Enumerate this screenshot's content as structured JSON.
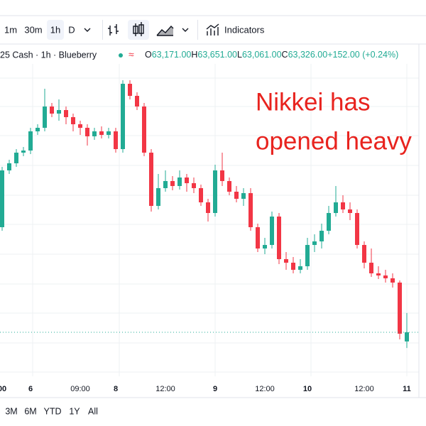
{
  "toolbar": {
    "intervals": [
      "1m",
      "30m",
      "1h",
      "D"
    ],
    "selected_index": 2,
    "indicators": "Indicators"
  },
  "legend": {
    "symbol": "25 Cash · 1h · Blueberry",
    "ohlc": [
      {
        "key": "O",
        "value": "63,171.00"
      },
      {
        "key": "H",
        "value": "63,651.00"
      },
      {
        "key": "L",
        "value": "63,061.00"
      },
      {
        "key": "C",
        "value": "63,326.00"
      }
    ],
    "change": "+152.00 (+0.24%)"
  },
  "chart_data": {
    "type": "candlestick",
    "annotation": [
      "Nikkei has",
      "opened heavy"
    ],
    "annotation_color": "#e8231e",
    "up_color": "#22ab94",
    "down_color": "#f23645",
    "categories": [
      "00",
      null,
      null,
      null,
      "6",
      null,
      null,
      null,
      null,
      null,
      null,
      "09:00",
      null,
      null,
      null,
      null,
      "8",
      null,
      null,
      null,
      null,
      null,
      null,
      "12:00",
      null,
      null,
      null,
      null,
      null,
      null,
      "9",
      null,
      null,
      null,
      null,
      null,
      null,
      "12:00",
      null,
      null,
      null,
      null,
      null,
      "10",
      null,
      null,
      null,
      null,
      null,
      null,
      null,
      "12:00",
      null,
      null,
      null,
      null,
      null,
      "11"
    ],
    "open": [
      65102,
      66062,
      66182,
      66362,
      66398,
      66722,
      66782,
      67142,
      67022,
      67082,
      66962,
      66842,
      66782,
      66638,
      66722,
      66662,
      66722,
      66422,
      67526,
      67322,
      67142,
      66362,
      65462,
      65762,
      65882,
      65798,
      65942,
      65846,
      65762,
      65522,
      65342,
      66062,
      65882,
      65702,
      65582,
      65678,
      65102,
      64742,
      64802,
      65282,
      64562,
      64502,
      64382,
      64442,
      64802,
      64862,
      65042,
      65342,
      65522,
      65402,
      65342,
      64802,
      64502,
      64322,
      64286,
      64238,
      64166,
      63171
    ],
    "high": [
      66122,
      66242,
      66422,
      66458,
      66782,
      66842,
      67442,
      67202,
      67262,
      67142,
      67022,
      66902,
      66842,
      66782,
      66806,
      66782,
      66782,
      67586,
      67586,
      67382,
      67202,
      66422,
      66002,
      66062,
      65966,
      66062,
      66002,
      65942,
      65822,
      65582,
      66158,
      66362,
      65942,
      65798,
      65762,
      65762,
      65162,
      64922,
      65366,
      65342,
      64682,
      64598,
      64562,
      64922,
      64982,
      65162,
      65462,
      65798,
      65642,
      65522,
      65402,
      64862,
      64742,
      64442,
      64382,
      64322,
      64202,
      63651
    ],
    "low": [
      65042,
      66002,
      66122,
      66302,
      66338,
      66662,
      66722,
      66962,
      66902,
      66842,
      66722,
      66662,
      66482,
      66578,
      66602,
      66602,
      66362,
      66362,
      67262,
      67082,
      66302,
      65366,
      65402,
      65702,
      65726,
      65738,
      65702,
      65678,
      65462,
      65198,
      65282,
      65798,
      65642,
      65522,
      65462,
      65042,
      64682,
      64646,
      64742,
      64478,
      64382,
      64322,
      64322,
      64382,
      64682,
      64742,
      64982,
      65282,
      65342,
      65222,
      64742,
      64406,
      64262,
      64226,
      64166,
      64082,
      63206,
      63061
    ],
    "close": [
      66062,
      66182,
      66362,
      66398,
      66722,
      66782,
      67142,
      67022,
      67082,
      66962,
      66842,
      66782,
      66638,
      66722,
      66662,
      66722,
      66422,
      67526,
      67322,
      67142,
      66362,
      65462,
      65762,
      65882,
      65798,
      65942,
      65846,
      65762,
      65522,
      65342,
      66062,
      65882,
      65702,
      65582,
      65678,
      65102,
      64742,
      64802,
      65282,
      64562,
      64502,
      64382,
      64442,
      64802,
      64862,
      65042,
      65342,
      65522,
      65402,
      65342,
      64802,
      64502,
      64322,
      64286,
      64238,
      64166,
      63302,
      63326
    ],
    "ylim": [
      62582,
      67862
    ]
  },
  "ranges": [
    "3M",
    "6M",
    "YTD",
    "1Y",
    "All"
  ]
}
